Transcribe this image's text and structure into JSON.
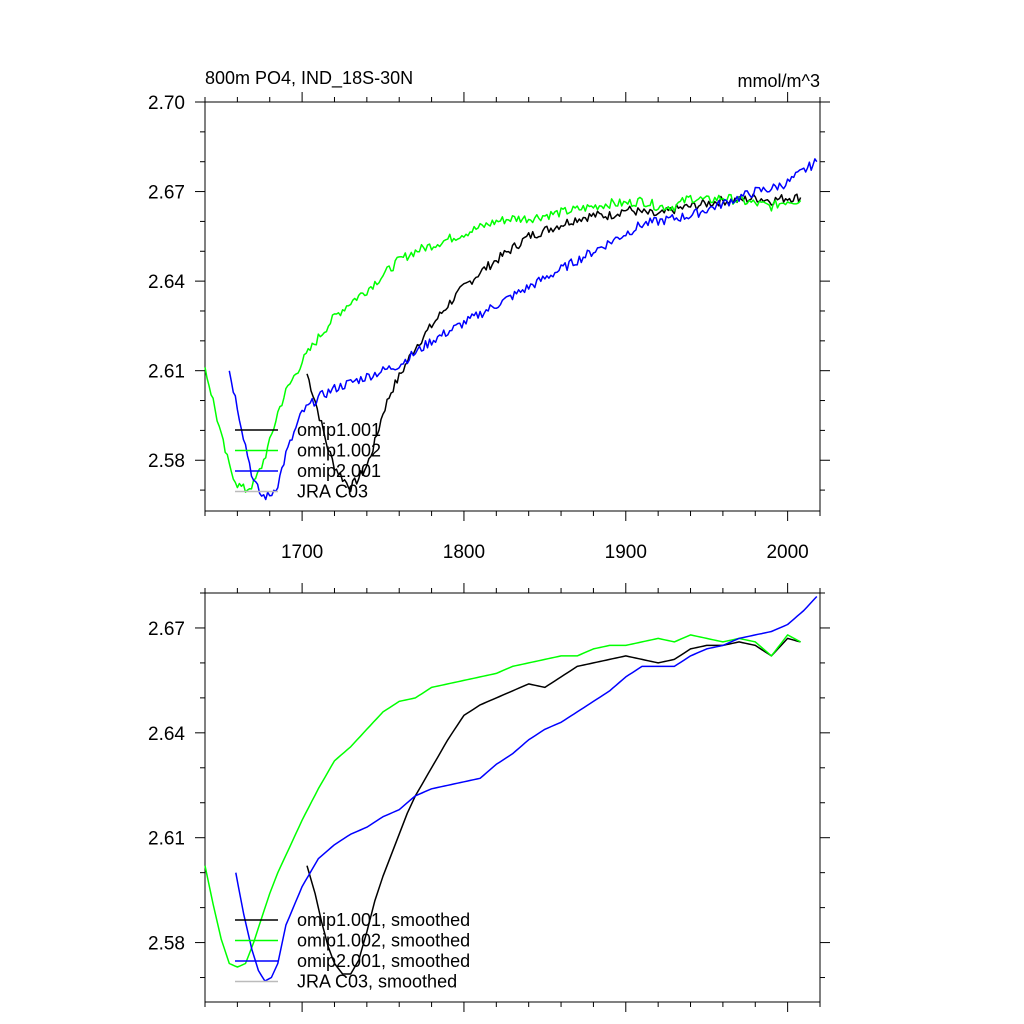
{
  "chart_data": [
    {
      "type": "line",
      "title": "800m PO4, IND_18S-30N",
      "units": "mmol/m^3",
      "xlim": [
        1640,
        2020
      ],
      "ylim": [
        2.563,
        2.7
      ],
      "x_ticks": [
        1700,
        1800,
        1900,
        2000
      ],
      "y_ticks": [
        2.58,
        2.61,
        2.64,
        2.67,
        2.7
      ],
      "y_tick_labels": [
        "2.58",
        "2.61",
        "2.64",
        "2.67",
        "2.70"
      ],
      "x_tick_labels": [
        "1700",
        "1800",
        "1900",
        "2000"
      ],
      "legend_position": "bottom-left",
      "noisy": true,
      "series": [
        {
          "name": "omip1.001",
          "color": "#000000",
          "x": [
            1703,
            1708,
            1712,
            1716,
            1720,
            1725,
            1730,
            1735,
            1740,
            1745,
            1750,
            1755,
            1760,
            1765,
            1770,
            1780,
            1790,
            1800,
            1810,
            1820,
            1830,
            1840,
            1850,
            1860,
            1870,
            1880,
            1890,
            1900,
            1910,
            1920,
            1930,
            1940,
            1950,
            1960,
            1970,
            1980,
            1990,
            2000,
            2008
          ],
          "y": [
            2.609,
            2.6,
            2.592,
            2.584,
            2.578,
            2.574,
            2.571,
            2.574,
            2.578,
            2.586,
            2.596,
            2.603,
            2.608,
            2.613,
            2.618,
            2.625,
            2.632,
            2.638,
            2.643,
            2.647,
            2.651,
            2.655,
            2.657,
            2.659,
            2.661,
            2.662,
            2.662,
            2.664,
            2.663,
            2.662,
            2.664,
            2.665,
            2.666,
            2.667,
            2.667,
            2.668,
            2.667,
            2.668,
            2.668
          ]
        },
        {
          "name": "omip1.002",
          "color": "#00ff00",
          "x": [
            1640,
            1645,
            1650,
            1655,
            1660,
            1665,
            1670,
            1675,
            1680,
            1685,
            1690,
            1700,
            1710,
            1720,
            1730,
            1740,
            1750,
            1760,
            1770,
            1780,
            1790,
            1800,
            1810,
            1820,
            1830,
            1840,
            1850,
            1860,
            1870,
            1880,
            1890,
            1900,
            1910,
            1920,
            1930,
            1940,
            1950,
            1960,
            1970,
            1980,
            1990,
            2000,
            2008
          ],
          "y": [
            2.611,
            2.6,
            2.588,
            2.578,
            2.572,
            2.57,
            2.572,
            2.578,
            2.586,
            2.596,
            2.603,
            2.613,
            2.621,
            2.628,
            2.633,
            2.637,
            2.642,
            2.647,
            2.65,
            2.652,
            2.654,
            2.656,
            2.658,
            2.66,
            2.661,
            2.661,
            2.662,
            2.663,
            2.664,
            2.665,
            2.666,
            2.666,
            2.667,
            2.665,
            2.665,
            2.668,
            2.667,
            2.668,
            2.667,
            2.666,
            2.665,
            2.667,
            2.667
          ]
        },
        {
          "name": "omip2.001",
          "color": "#0000ff",
          "x": [
            1655,
            1660,
            1665,
            1670,
            1675,
            1680,
            1685,
            1690,
            1700,
            1710,
            1720,
            1730,
            1740,
            1750,
            1760,
            1770,
            1780,
            1790,
            1800,
            1810,
            1820,
            1830,
            1840,
            1850,
            1860,
            1870,
            1880,
            1890,
            1900,
            1910,
            1920,
            1930,
            1940,
            1950,
            1960,
            1970,
            1980,
            1990,
            2000,
            2010,
            2018
          ],
          "y": [
            2.61,
            2.598,
            2.585,
            2.573,
            2.568,
            2.568,
            2.572,
            2.582,
            2.596,
            2.601,
            2.604,
            2.606,
            2.608,
            2.61,
            2.612,
            2.616,
            2.62,
            2.623,
            2.626,
            2.629,
            2.632,
            2.635,
            2.638,
            2.641,
            2.644,
            2.647,
            2.65,
            2.653,
            2.656,
            2.659,
            2.66,
            2.661,
            2.662,
            2.664,
            2.666,
            2.668,
            2.67,
            2.671,
            2.673,
            2.677,
            2.68
          ]
        },
        {
          "name": "JRA C03",
          "color": "#bbbbbb",
          "x": [],
          "y": []
        }
      ]
    },
    {
      "type": "line",
      "xlim": [
        1640,
        2020
      ],
      "ylim": [
        2.563,
        2.68
      ],
      "x_ticks": [
        1700,
        1800,
        1900,
        2000
      ],
      "y_ticks": [
        2.58,
        2.61,
        2.64,
        2.67
      ],
      "y_tick_labels": [
        "2.58",
        "2.61",
        "2.64",
        "2.67"
      ],
      "legend_position": "bottom-left",
      "noisy": false,
      "series": [
        {
          "name": "omip1.001, smoothed",
          "color": "#000000",
          "x": [
            1703,
            1708,
            1712,
            1716,
            1720,
            1725,
            1730,
            1735,
            1740,
            1745,
            1750,
            1755,
            1760,
            1765,
            1770,
            1780,
            1790,
            1800,
            1810,
            1820,
            1830,
            1840,
            1850,
            1860,
            1870,
            1880,
            1890,
            1900,
            1910,
            1920,
            1930,
            1940,
            1950,
            1960,
            1970,
            1980,
            1990,
            2000,
            2008
          ],
          "y": [
            2.602,
            2.594,
            2.586,
            2.579,
            2.574,
            2.571,
            2.571,
            2.575,
            2.583,
            2.592,
            2.599,
            2.605,
            2.611,
            2.617,
            2.622,
            2.63,
            2.638,
            2.645,
            2.648,
            2.65,
            2.652,
            2.654,
            2.653,
            2.656,
            2.659,
            2.66,
            2.661,
            2.662,
            2.661,
            2.66,
            2.661,
            2.664,
            2.665,
            2.665,
            2.666,
            2.665,
            2.662,
            2.667,
            2.666
          ]
        },
        {
          "name": "omip1.002, smoothed",
          "color": "#00ff00",
          "x": [
            1640,
            1645,
            1650,
            1655,
            1660,
            1665,
            1670,
            1675,
            1680,
            1685,
            1690,
            1700,
            1710,
            1720,
            1730,
            1740,
            1750,
            1760,
            1770,
            1780,
            1790,
            1800,
            1810,
            1820,
            1830,
            1840,
            1850,
            1860,
            1870,
            1880,
            1890,
            1900,
            1910,
            1920,
            1930,
            1940,
            1950,
            1960,
            1970,
            1980,
            1990,
            2000,
            2008
          ],
          "y": [
            2.602,
            2.591,
            2.581,
            2.574,
            2.573,
            2.574,
            2.58,
            2.587,
            2.594,
            2.6,
            2.605,
            2.615,
            2.624,
            2.632,
            2.636,
            2.641,
            2.646,
            2.649,
            2.65,
            2.653,
            2.654,
            2.655,
            2.656,
            2.657,
            2.659,
            2.66,
            2.661,
            2.662,
            2.662,
            2.664,
            2.665,
            2.665,
            2.666,
            2.667,
            2.666,
            2.668,
            2.667,
            2.666,
            2.667,
            2.666,
            2.662,
            2.668,
            2.666
          ]
        },
        {
          "name": "omip2.001, smoothed",
          "color": "#0000ff",
          "x": [
            1659,
            1664,
            1669,
            1673,
            1677,
            1681,
            1685,
            1690,
            1700,
            1710,
            1720,
            1730,
            1740,
            1750,
            1760,
            1770,
            1780,
            1790,
            1800,
            1810,
            1820,
            1830,
            1840,
            1850,
            1860,
            1870,
            1880,
            1890,
            1900,
            1910,
            1920,
            1930,
            1940,
            1950,
            1960,
            1970,
            1980,
            1990,
            2000,
            2010,
            2018
          ],
          "y": [
            2.6,
            2.588,
            2.578,
            2.572,
            2.569,
            2.57,
            2.574,
            2.585,
            2.596,
            2.604,
            2.608,
            2.611,
            2.613,
            2.616,
            2.618,
            2.622,
            2.624,
            2.625,
            2.626,
            2.627,
            2.631,
            2.634,
            2.638,
            2.641,
            2.643,
            2.646,
            2.649,
            2.652,
            2.656,
            2.659,
            2.659,
            2.659,
            2.662,
            2.664,
            2.665,
            2.667,
            2.668,
            2.669,
            2.671,
            2.675,
            2.679
          ]
        },
        {
          "name": "JRA C03, smoothed",
          "color": "#bbbbbb",
          "x": [],
          "y": []
        }
      ]
    }
  ]
}
